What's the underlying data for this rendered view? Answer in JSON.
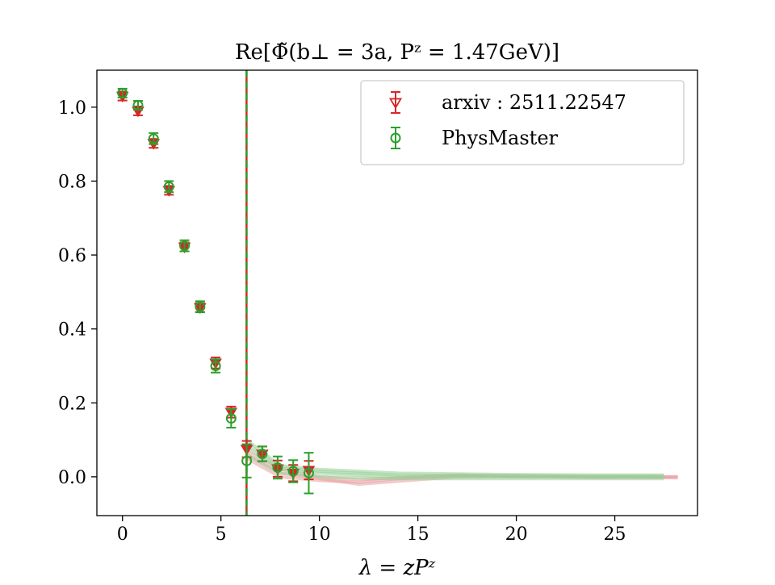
{
  "chart_data": {
    "type": "scatter",
    "title": "Re[Φ̃(b⊥ = 3a, Pᶻ = 1.47GeV)]",
    "xlabel": "λ = zPᶻ",
    "ylabel": "",
    "xlim": [
      -1.3,
      29.2
    ],
    "ylim": [
      -0.105,
      1.1
    ],
    "x_ticks": [
      0,
      5,
      10,
      15,
      20,
      25
    ],
    "y_ticks": [
      0.0,
      0.2,
      0.4,
      0.6,
      0.8,
      1.0
    ],
    "x_tick_labels": [
      "0",
      "5",
      "10",
      "15",
      "20",
      "25"
    ],
    "y_tick_labels": [
      "0.0",
      "0.2",
      "0.4",
      "0.6",
      "0.8",
      "1.0"
    ],
    "grid": false,
    "legend_position": "top-right",
    "vline": {
      "x": 6.3,
      "colors": [
        "#d62728",
        "#2ca02c"
      ],
      "style": "dashed"
    },
    "series": [
      {
        "name": "arxiv : 2511.22547",
        "marker": "triangle-down",
        "color": "#d62728",
        "points": [
          {
            "x": 0.0,
            "y": 1.03,
            "err": 0.012
          },
          {
            "x": 0.79,
            "y": 0.99,
            "err": 0.012
          },
          {
            "x": 1.58,
            "y": 0.902,
            "err": 0.012
          },
          {
            "x": 2.36,
            "y": 0.775,
            "err": 0.012
          },
          {
            "x": 3.15,
            "y": 0.622,
            "err": 0.012
          },
          {
            "x": 3.94,
            "y": 0.458,
            "err": 0.012
          },
          {
            "x": 4.73,
            "y": 0.308,
            "err": 0.015
          },
          {
            "x": 5.52,
            "y": 0.175,
            "err": 0.015
          },
          {
            "x": 6.31,
            "y": 0.075,
            "err": 0.022
          },
          {
            "x": 7.1,
            "y": 0.062,
            "err": 0.02
          },
          {
            "x": 7.88,
            "y": 0.022,
            "err": 0.022
          },
          {
            "x": 8.67,
            "y": 0.01,
            "err": 0.022
          },
          {
            "x": 9.46,
            "y": 0.018,
            "err": 0.025
          }
        ]
      },
      {
        "name": "PhysMaster",
        "marker": "circle-open",
        "color": "#2ca02c",
        "points": [
          {
            "x": 0.0,
            "y": 1.038,
            "err": 0.012
          },
          {
            "x": 0.79,
            "y": 1.005,
            "err": 0.012
          },
          {
            "x": 1.58,
            "y": 0.915,
            "err": 0.015
          },
          {
            "x": 2.36,
            "y": 0.785,
            "err": 0.015
          },
          {
            "x": 3.15,
            "y": 0.625,
            "err": 0.015
          },
          {
            "x": 3.94,
            "y": 0.46,
            "err": 0.015
          },
          {
            "x": 4.73,
            "y": 0.3,
            "err": 0.018
          },
          {
            "x": 5.52,
            "y": 0.158,
            "err": 0.025
          },
          {
            "x": 6.31,
            "y": 0.043,
            "err": 0.045
          },
          {
            "x": 7.1,
            "y": 0.062,
            "err": 0.02
          },
          {
            "x": 7.88,
            "y": 0.025,
            "err": 0.03
          },
          {
            "x": 8.67,
            "y": 0.015,
            "err": 0.03
          },
          {
            "x": 9.46,
            "y": 0.01,
            "err": 0.055
          }
        ]
      }
    ],
    "bands": [
      {
        "color": "#e8a0a0",
        "curves": [
          [
            [
              6.3,
              0.05
            ],
            [
              8,
              0.0
            ],
            [
              10,
              -0.01
            ],
            [
              12,
              -0.015
            ],
            [
              14,
              -0.005
            ],
            [
              17,
              0.005
            ],
            [
              20,
              0.002
            ],
            [
              24,
              -0.002
            ],
            [
              28.2,
              0.0
            ]
          ],
          [
            [
              6.3,
              0.06
            ],
            [
              8,
              0.01
            ],
            [
              10,
              -0.005
            ],
            [
              12,
              -0.02
            ],
            [
              14,
              -0.012
            ],
            [
              17,
              0.0
            ],
            [
              20,
              0.003
            ],
            [
              24,
              0.0
            ],
            [
              28.2,
              -0.003
            ]
          ],
          [
            [
              6.3,
              0.07
            ],
            [
              8,
              0.02
            ],
            [
              10,
              0.0
            ],
            [
              12,
              -0.008
            ],
            [
              14,
              -0.002
            ],
            [
              17,
              0.004
            ],
            [
              20,
              0.0
            ],
            [
              24,
              0.0
            ],
            [
              28.2,
              0.0
            ]
          ]
        ]
      },
      {
        "color": "#98d098",
        "curves": [
          [
            [
              6.3,
              0.1
            ],
            [
              8,
              0.03
            ],
            [
              10,
              0.02
            ],
            [
              12,
              0.015
            ],
            [
              14,
              0.01
            ],
            [
              17,
              0.008
            ],
            [
              20,
              0.006
            ],
            [
              24,
              0.005
            ],
            [
              27.5,
              0.005
            ]
          ],
          [
            [
              6.3,
              0.08
            ],
            [
              8,
              0.02
            ],
            [
              10,
              0.01
            ],
            [
              12,
              0.005
            ],
            [
              14,
              0.0
            ],
            [
              17,
              0.0
            ],
            [
              20,
              0.0
            ],
            [
              24,
              0.0
            ],
            [
              27.5,
              0.0
            ]
          ],
          [
            [
              6.3,
              0.06
            ],
            [
              8,
              0.01
            ],
            [
              10,
              0.0
            ],
            [
              12,
              -0.003
            ],
            [
              14,
              -0.005
            ],
            [
              17,
              -0.005
            ],
            [
              20,
              -0.005
            ],
            [
              24,
              -0.005
            ],
            [
              27.5,
              -0.005
            ]
          ],
          [
            [
              6.3,
              0.09
            ],
            [
              8,
              0.025
            ],
            [
              10,
              0.015
            ],
            [
              12,
              0.01
            ],
            [
              14,
              0.005
            ],
            [
              17,
              0.004
            ],
            [
              20,
              0.003
            ],
            [
              24,
              0.002
            ],
            [
              27.5,
              0.002
            ]
          ]
        ]
      }
    ]
  }
}
